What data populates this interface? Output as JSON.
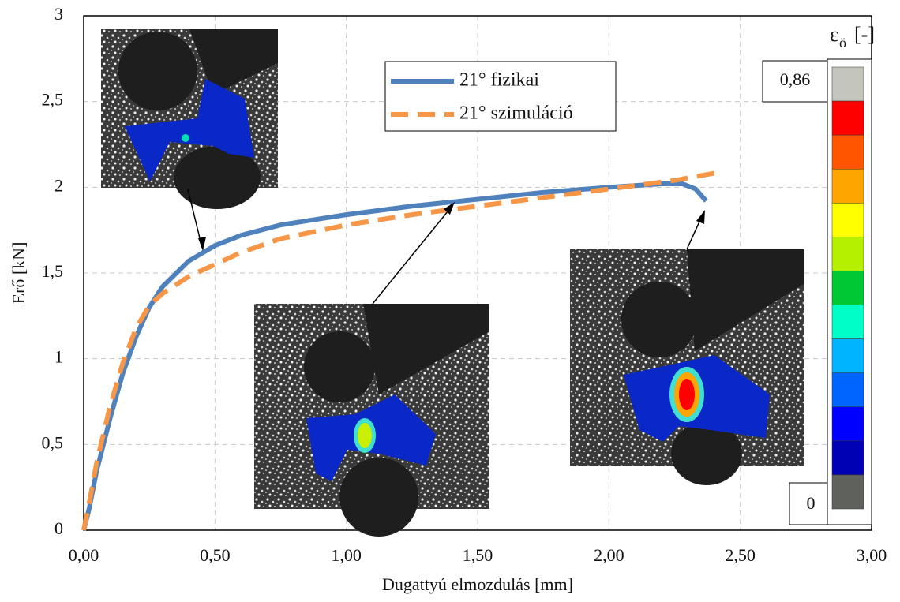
{
  "chart_data": {
    "type": "line",
    "xlabel": "Dugattyú elmozdulás [mm]",
    "ylabel": "Erő [kN]",
    "xlim": [
      0,
      3
    ],
    "ylim": [
      0,
      3
    ],
    "xticks": [
      {
        "value": 0,
        "label": "0,00"
      },
      {
        "value": 0.5,
        "label": "0,50"
      },
      {
        "value": 1,
        "label": "1,00"
      },
      {
        "value": 1.5,
        "label": "1,50"
      },
      {
        "value": 2,
        "label": "2,00"
      },
      {
        "value": 2.5,
        "label": "2,50"
      },
      {
        "value": 3,
        "label": "3,00"
      }
    ],
    "yticks": [
      0,
      {
        "value": 0.5,
        "label": "0,5"
      },
      1,
      {
        "value": 1.5,
        "label": "1,5"
      },
      2,
      {
        "value": 2.5,
        "label": "2,5"
      },
      3
    ],
    "grid": true,
    "series": [
      {
        "name": "21° fizikai",
        "color": "#4f81bd",
        "dash": false,
        "x": [
          0,
          0.02,
          0.05,
          0.1,
          0.15,
          0.2,
          0.25,
          0.3,
          0.4,
          0.5,
          0.6,
          0.75,
          1.0,
          1.25,
          1.5,
          1.75,
          2.0,
          2.2,
          2.28,
          2.33,
          2.37
        ],
        "values": [
          0,
          0.12,
          0.35,
          0.65,
          0.92,
          1.13,
          1.3,
          1.42,
          1.57,
          1.66,
          1.72,
          1.78,
          1.84,
          1.89,
          1.93,
          1.97,
          2.0,
          2.02,
          2.02,
          1.99,
          1.92
        ]
      },
      {
        "name": "21° szimuláció",
        "color": "#f79646",
        "dash": true,
        "x": [
          0,
          0.02,
          0.05,
          0.1,
          0.15,
          0.2,
          0.25,
          0.3,
          0.4,
          0.5,
          0.6,
          0.75,
          1.0,
          1.25,
          1.5,
          1.75,
          2.0,
          2.25,
          2.43
        ],
        "values": [
          0,
          0.15,
          0.4,
          0.72,
          0.98,
          1.18,
          1.31,
          1.38,
          1.48,
          1.55,
          1.62,
          1.7,
          1.78,
          1.84,
          1.89,
          1.94,
          1.99,
          2.04,
          2.09
        ]
      }
    ],
    "colorbar": {
      "symbol": "ε",
      "subscript": "ö",
      "unit": "[-]",
      "max": {
        "value": 0.86,
        "label": "0,86"
      },
      "min": 0,
      "colors": [
        "#c4c6bc",
        "#ff0000",
        "#ff5500",
        "#ffa500",
        "#ffff00",
        "#b4f000",
        "#00c832",
        "#00ffc8",
        "#00b4ff",
        "#0064ff",
        "#0000ff",
        "#0000b4",
        "#5f625c"
      ]
    }
  }
}
